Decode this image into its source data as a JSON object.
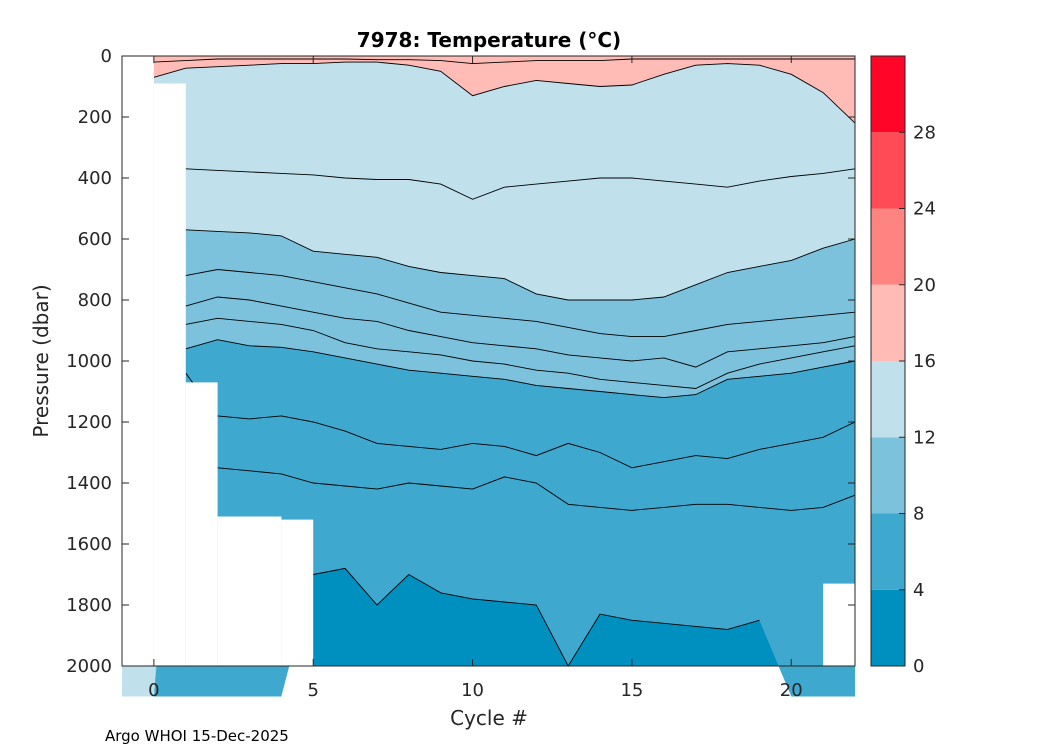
{
  "chart_data": {
    "type": "contour",
    "title": "7978:  Temperature (°C)",
    "xlabel": "Cycle #",
    "ylabel": "Pressure (dbar)",
    "xlim": [
      -1,
      22
    ],
    "ylim": [
      2000,
      0
    ],
    "x_ticks": [
      0,
      5,
      10,
      15,
      20
    ],
    "y_ticks": [
      0,
      200,
      400,
      600,
      800,
      1000,
      1200,
      1400,
      1600,
      1800,
      2000
    ],
    "colorbar": {
      "range": [
        0,
        32
      ],
      "ticks": [
        0,
        4,
        8,
        12,
        16,
        20,
        24,
        28
      ],
      "bands": [
        {
          "from": 0,
          "to": 4,
          "color": "#0090bf"
        },
        {
          "from": 4,
          "to": 8,
          "color": "#3ea8ce"
        },
        {
          "from": 8,
          "to": 12,
          "color": "#7cc2dc"
        },
        {
          "from": 12,
          "to": 16,
          "color": "#c0e0ec"
        },
        {
          "from": 16,
          "to": 20,
          "color": "#ffbbb5"
        },
        {
          "from": 20,
          "to": 24,
          "color": "#fd8480"
        },
        {
          "from": 24,
          "to": 28,
          "color": "#fe4b55"
        },
        {
          "from": 28,
          "to": 32,
          "color": "#ff0528"
        }
      ]
    },
    "cycles": [
      0,
      1,
      2,
      3,
      4,
      5,
      6,
      7,
      8,
      9,
      10,
      11,
      12,
      13,
      14,
      15,
      16,
      17,
      18,
      19,
      20,
      21,
      22
    ],
    "max_pressure": [
      90,
      1070,
      1510,
      1510,
      1520,
      2000,
      2000,
      2000,
      2000,
      2000,
      2000,
      2000,
      2000,
      2000,
      2000,
      2000,
      2000,
      2000,
      2000,
      2000,
      2000,
      1730,
      1640
    ],
    "isotherms": [
      {
        "temp": 4,
        "depth": [
          null,
          null,
          null,
          null,
          null,
          1700,
          1680,
          1800,
          1700,
          1760,
          1780,
          1790,
          1800,
          2000,
          1830,
          1850,
          1860,
          1870,
          1880,
          1850,
          null,
          null,
          null
        ]
      },
      {
        "temp": 6,
        "depth": [
          null,
          null,
          1350,
          1360,
          1370,
          1400,
          1410,
          1420,
          1400,
          1410,
          1420,
          1380,
          1400,
          1470,
          1480,
          1490,
          1480,
          1470,
          1470,
          1480,
          1490,
          1480,
          1440
        ]
      },
      {
        "temp": 7,
        "depth": [
          null,
          1040,
          1180,
          1190,
          1180,
          1200,
          1230,
          1270,
          1280,
          1290,
          1270,
          1280,
          1310,
          1270,
          1300,
          1350,
          1330,
          1310,
          1320,
          1290,
          1270,
          1250,
          1200
        ]
      },
      {
        "temp": 8,
        "depth": [
          null,
          960,
          930,
          950,
          955,
          970,
          990,
          1010,
          1030,
          1040,
          1050,
          1060,
          1080,
          1090,
          1100,
          1110,
          1120,
          1110,
          1060,
          1050,
          1040,
          1020,
          1000
        ]
      },
      {
        "temp": 9,
        "depth": [
          null,
          880,
          860,
          870,
          880,
          900,
          940,
          960,
          970,
          980,
          1000,
          1010,
          1030,
          1040,
          1060,
          1070,
          1080,
          1090,
          1040,
          1010,
          990,
          970,
          950
        ]
      },
      {
        "temp": 10,
        "depth": [
          null,
          820,
          790,
          800,
          820,
          840,
          860,
          870,
          900,
          920,
          940,
          950,
          960,
          980,
          990,
          1000,
          990,
          1020,
          970,
          960,
          950,
          940,
          920
        ]
      },
      {
        "temp": 11,
        "depth": [
          null,
          720,
          700,
          710,
          720,
          740,
          760,
          780,
          810,
          840,
          850,
          860,
          870,
          890,
          910,
          920,
          920,
          900,
          880,
          870,
          860,
          850,
          840
        ]
      },
      {
        "temp": 12,
        "depth": [
          null,
          570,
          575,
          580,
          590,
          640,
          650,
          660,
          690,
          710,
          720,
          730,
          780,
          800,
          800,
          800,
          790,
          750,
          710,
          690,
          670,
          630,
          600
        ]
      },
      {
        "temp": 14,
        "depth": [
          null,
          370,
          375,
          380,
          385,
          390,
          400,
          405,
          405,
          420,
          470,
          430,
          420,
          410,
          400,
          400,
          410,
          420,
          430,
          410,
          395,
          385,
          370
        ]
      },
      {
        "temp": 16,
        "depth": [
          70,
          40,
          35,
          30,
          25,
          25,
          20,
          20,
          30,
          50,
          130,
          100,
          80,
          90,
          100,
          95,
          60,
          30,
          25,
          30,
          60,
          120,
          220
        ]
      },
      {
        "temp": 18,
        "depth": [
          20,
          15,
          10,
          10,
          10,
          10,
          10,
          12,
          12,
          15,
          25,
          20,
          15,
          15,
          15,
          10,
          10,
          10,
          10,
          10,
          10,
          10,
          10
        ]
      }
    ],
    "grid": false,
    "legend": "colorbar-right"
  },
  "footer": "Argo WHOI 15-Dec-2025"
}
